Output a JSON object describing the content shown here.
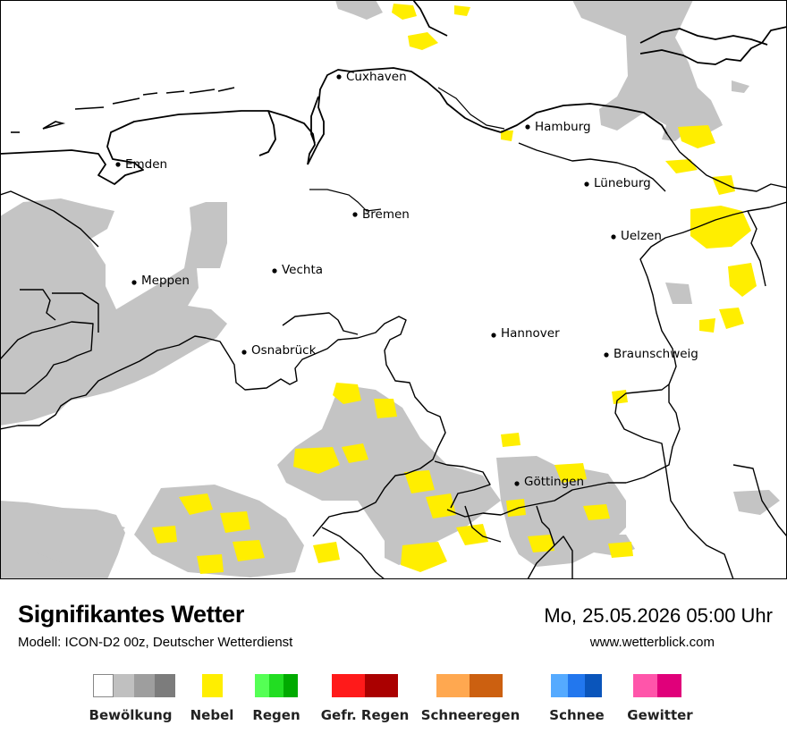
{
  "map": {
    "cities": [
      {
        "name": "Cuxhaven",
        "lon": 8.69,
        "lat": 53.87
      },
      {
        "name": "Hamburg",
        "lon": 10.0,
        "lat": 53.55
      },
      {
        "name": "Emden",
        "lon": 7.21,
        "lat": 53.37
      },
      {
        "name": "Lüneburg",
        "lon": 10.41,
        "lat": 53.25
      },
      {
        "name": "Bremen",
        "lon": 8.81,
        "lat": 53.08
      },
      {
        "name": "Uelzen",
        "lon": 10.56,
        "lat": 52.97
      },
      {
        "name": "Vechta",
        "lon": 8.29,
        "lat": 52.73
      },
      {
        "name": "Meppen",
        "lon": 7.29,
        "lat": 52.69
      },
      {
        "name": "Hannover",
        "lon": 9.73,
        "lat": 52.37
      },
      {
        "name": "Osnabrück",
        "lon": 8.05,
        "lat": 52.28
      },
      {
        "name": "Braunschweig",
        "lon": 10.52,
        "lat": 52.27
      },
      {
        "name": "Göttingen",
        "lon": 9.93,
        "lat": 51.53
      }
    ]
  },
  "header": {
    "title": "Signifikantes Wetter",
    "subtitle": "Modell: ICON-D2 00z, Deutscher Wetterdienst",
    "datetime": "Mo, 25.05.2026 05:00 Uhr",
    "website": "www.wetterblick.com"
  },
  "legend": [
    {
      "label": "Bewölkung",
      "colors": [
        "#ffffff",
        "#c0c0c0",
        "#9e9e9e",
        "#7c7c7c"
      ]
    },
    {
      "label": "Nebel",
      "colors": [
        "#ffee00"
      ]
    },
    {
      "label": "Regen",
      "colors": [
        "#55ff55",
        "#22dd22",
        "#00aa00"
      ]
    },
    {
      "label": "Gefr. Regen",
      "colors": [
        "#ff1a1a",
        "#aa0000"
      ]
    },
    {
      "label": "Schneeregen",
      "colors": [
        "#ffa850",
        "#cc6010"
      ]
    },
    {
      "label": "Schnee",
      "colors": [
        "#55aaff",
        "#2277ee",
        "#0a55bb"
      ]
    },
    {
      "label": "Gewitter",
      "colors": [
        "#ff55aa",
        "#e0007a"
      ]
    }
  ]
}
